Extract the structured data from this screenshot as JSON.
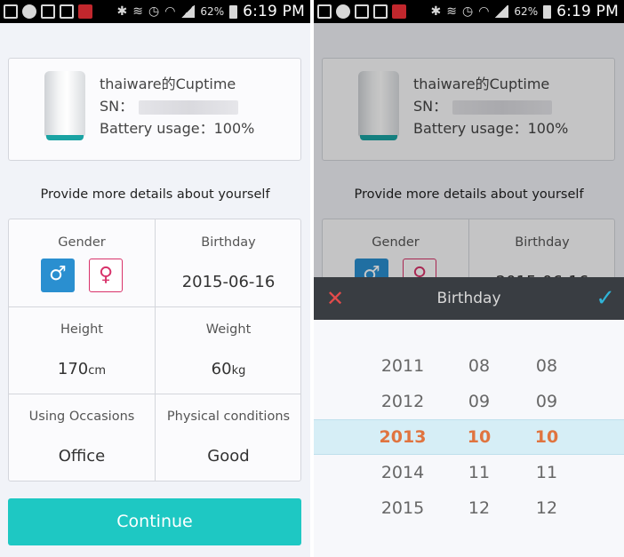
{
  "status_bar": {
    "battery": "62%",
    "time": "6:19 PM"
  },
  "device": {
    "name": "thaiware的Cuptime",
    "sn_label": "SN：",
    "battery_label": "Battery usage：100%"
  },
  "prompt": "Provide more details about yourself",
  "fields": {
    "gender_label": "Gender",
    "male_symbol": "♂",
    "female_symbol": "♀",
    "birthday_label": "Birthday",
    "birthday_value": "2015-06-16",
    "height_label": "Height",
    "height_value": "170",
    "height_unit": "cm",
    "weight_label": "Weight",
    "weight_value": "60",
    "weight_unit": "kg",
    "occasions_label": "Using Occasions",
    "occasions_value": "Office",
    "physical_label": "Physical conditions",
    "physical_value": "Good"
  },
  "continue_label": "Continue",
  "picker": {
    "title": "Birthday",
    "cancel_symbol": "✕",
    "confirm_symbol": "✓",
    "years": [
      "2011",
      "2012",
      "2013",
      "2014",
      "2015"
    ],
    "months": [
      "08",
      "09",
      "10",
      "11",
      "12"
    ],
    "days": [
      "08",
      "09",
      "10",
      "11",
      "12"
    ],
    "selected_index": 2
  },
  "colors": {
    "accent": "#1ec8c3",
    "male": "#2a8fd0",
    "female": "#d8326a",
    "picker_selected": "#e0743f",
    "picker_confirm": "#2fb4d8",
    "picker_cancel": "#e24b4b"
  },
  "icons": [
    "gallery-icon",
    "line-icon",
    "cast-icon",
    "mail-icon",
    "muted-icon",
    "bluetooth-icon",
    "vibrate-icon",
    "alarm-icon",
    "wifi-icon",
    "signal-icon",
    "battery-icon"
  ]
}
